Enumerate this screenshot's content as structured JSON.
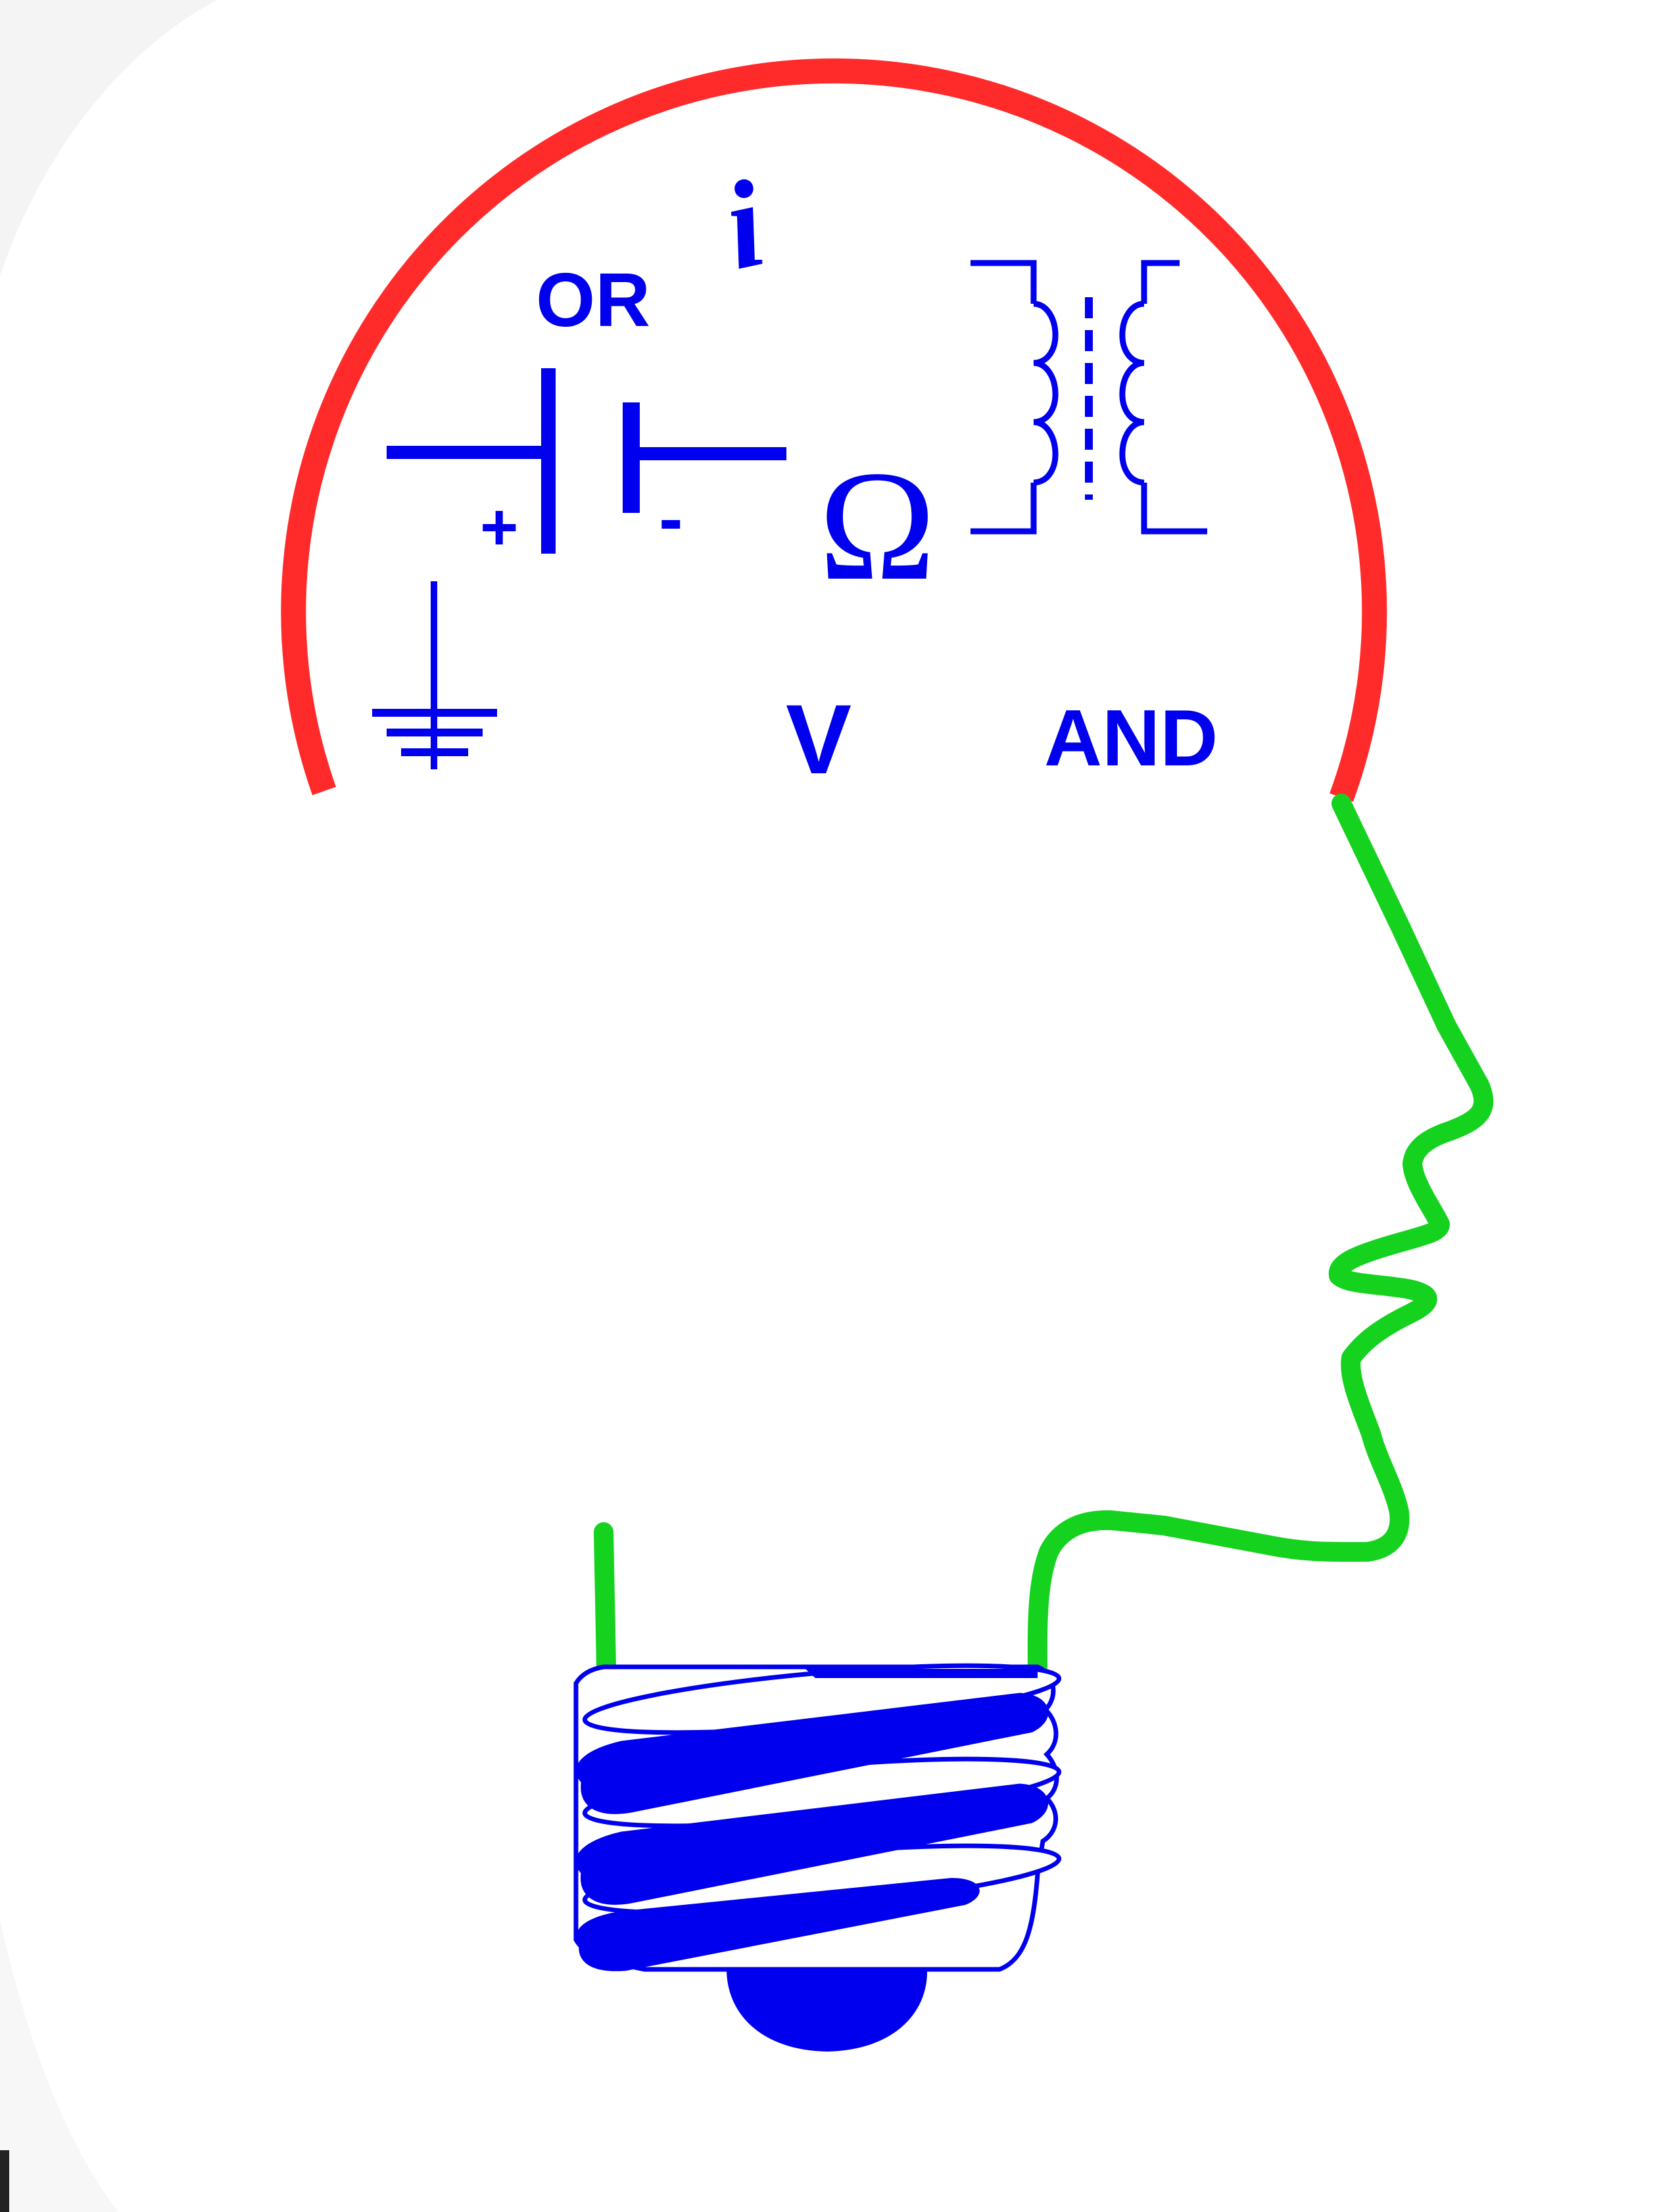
{
  "labels": {
    "or": "OR",
    "and": "AND",
    "volt": "V",
    "ohm": "Ω",
    "current": "i",
    "plus": "+",
    "minus": "-"
  },
  "icons": {
    "battery": "battery-symbol-icon",
    "ground": "ground-symbol-icon",
    "transformer": "transformer-symbol-icon",
    "bulb_base": "light-bulb-base-icon"
  },
  "colors": {
    "skull": "#ff2b2b",
    "face": "#14d21e",
    "symbols": "#0000ee",
    "background": "#ffffff"
  }
}
